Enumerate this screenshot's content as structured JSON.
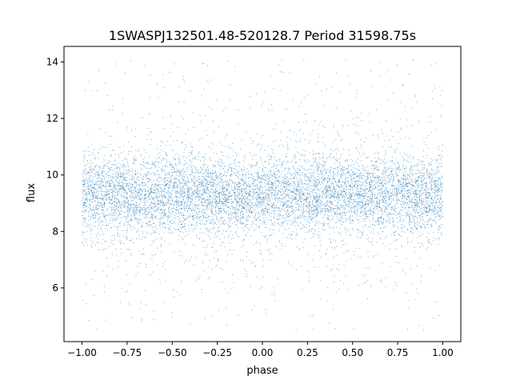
{
  "chart_data": {
    "type": "scatter",
    "title": "1SWASPJ132501.48-520128.7 Period 31598.75s",
    "xlabel": "phase",
    "ylabel": "flux",
    "xlim": [
      -1.1,
      1.1
    ],
    "ylim": [
      4.1,
      14.55
    ],
    "xticks": [
      -1.0,
      -0.75,
      -0.5,
      -0.25,
      0.0,
      0.25,
      0.5,
      0.75,
      1.0
    ],
    "xtick_labels": [
      "−1.00",
      "−0.75",
      "−0.50",
      "−0.25",
      "0.00",
      "0.25",
      "0.50",
      "0.75",
      "1.00"
    ],
    "yticks": [
      6,
      8,
      10,
      12,
      14
    ],
    "ytick_labels": [
      "6",
      "8",
      "10",
      "12",
      "14"
    ],
    "grid": false,
    "marker_color": "#1f77b4",
    "series": [
      {
        "x_range": [
          -1.0,
          1.0
        ],
        "y_center": 9.3,
        "y_core_spread": 0.9,
        "y_min": 4.5,
        "y_max": 14.1,
        "distribution": "phase-folded light curve, dense band centered near flux 9.3, sparse outliers 4.5–14"
      }
    ]
  }
}
